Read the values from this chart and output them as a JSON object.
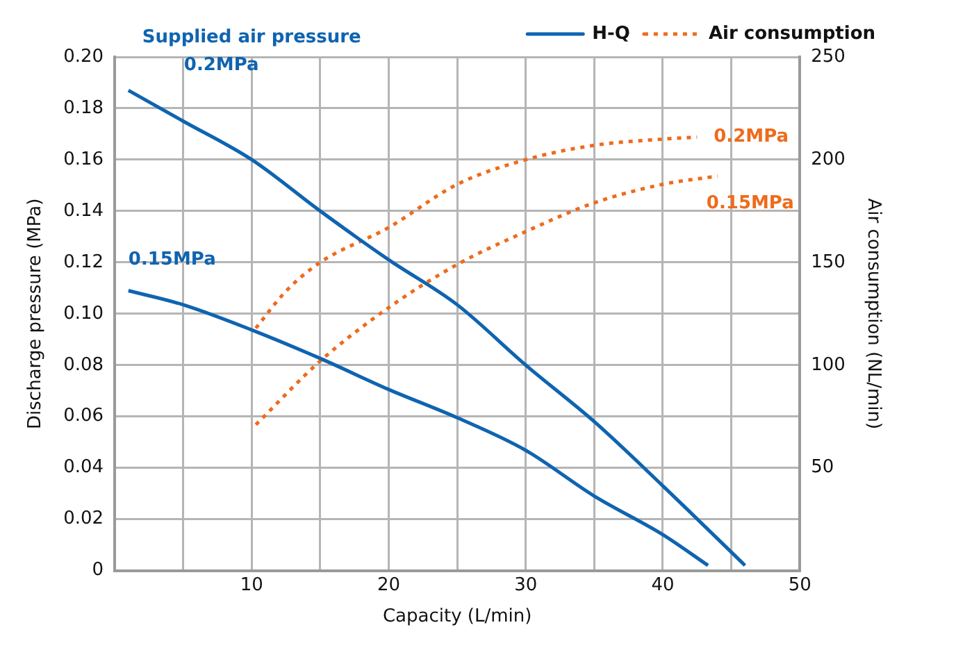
{
  "chart_data": {
    "type": "line",
    "xlabel": "Capacity (L/min)",
    "ylabel": "Discharge pressure (MPa)",
    "y2label": "Air consumption (NL/min)",
    "xlim": [
      0,
      50
    ],
    "xticks": [
      {
        "value": 0,
        "label": null
      },
      {
        "value": 5,
        "label": null
      },
      10,
      {
        "value": 15,
        "label": null
      },
      20,
      {
        "value": 25,
        "label": null
      },
      30,
      {
        "value": 35,
        "label": null
      },
      40,
      {
        "value": 45,
        "label": null
      },
      50
    ],
    "ylim": [
      0,
      0.2
    ],
    "yticks": [
      0,
      0.02,
      0.04,
      0.06,
      0.08,
      {
        "value": 0.1,
        "label": "0.10"
      },
      0.12,
      0.14,
      0.16,
      0.18,
      {
        "value": 0.2,
        "label": "0.20"
      }
    ],
    "y2lim": [
      0,
      250
    ],
    "y2ticks": [
      50,
      100,
      150,
      200,
      250
    ],
    "grid": true,
    "legend": "top right",
    "marker": "none",
    "series": [
      {
        "name": "H-Q",
        "color": "#0f64b0",
        "line_style": "solid",
        "x": [
          1,
          5,
          10,
          15,
          20,
          25,
          30,
          35,
          40,
          46
        ],
        "values": [
          0.187,
          0.175,
          0.16,
          0.14,
          0.121,
          0.1035,
          0.08,
          0.058,
          0.033,
          0.002
        ]
      },
      {
        "color": "#0f64b0",
        "line_style": "solid",
        "x": [
          1,
          5,
          10,
          15,
          20,
          25,
          30,
          35,
          40,
          43.3
        ],
        "values": [
          0.109,
          0.1035,
          0.0937,
          0.0826,
          0.0705,
          0.0595,
          0.0468,
          0.029,
          0.014,
          0.002
        ]
      },
      {
        "name": "Air consumption",
        "color": "#ee6b1c",
        "line_style": "dotted",
        "axis": "y2",
        "x": [
          10.3,
          12.5,
          15,
          20,
          25,
          30,
          35,
          40,
          42.5
        ],
        "values": [
          118,
          136,
          150,
          167,
          188,
          200,
          207,
          210,
          211
        ]
      },
      {
        "color": "#ee6b1c",
        "line_style": "dotted",
        "axis": "y2",
        "x": [
          10.3,
          15,
          20,
          25,
          30,
          35,
          40,
          44
        ],
        "values": [
          71,
          102,
          128,
          149,
          165,
          179,
          188,
          192
        ]
      }
    ],
    "annotations": [
      "Supplied air pressure",
      "0.2MPa",
      "0.15MPa",
      "0.2MPa",
      "0.15MPa"
    ]
  }
}
